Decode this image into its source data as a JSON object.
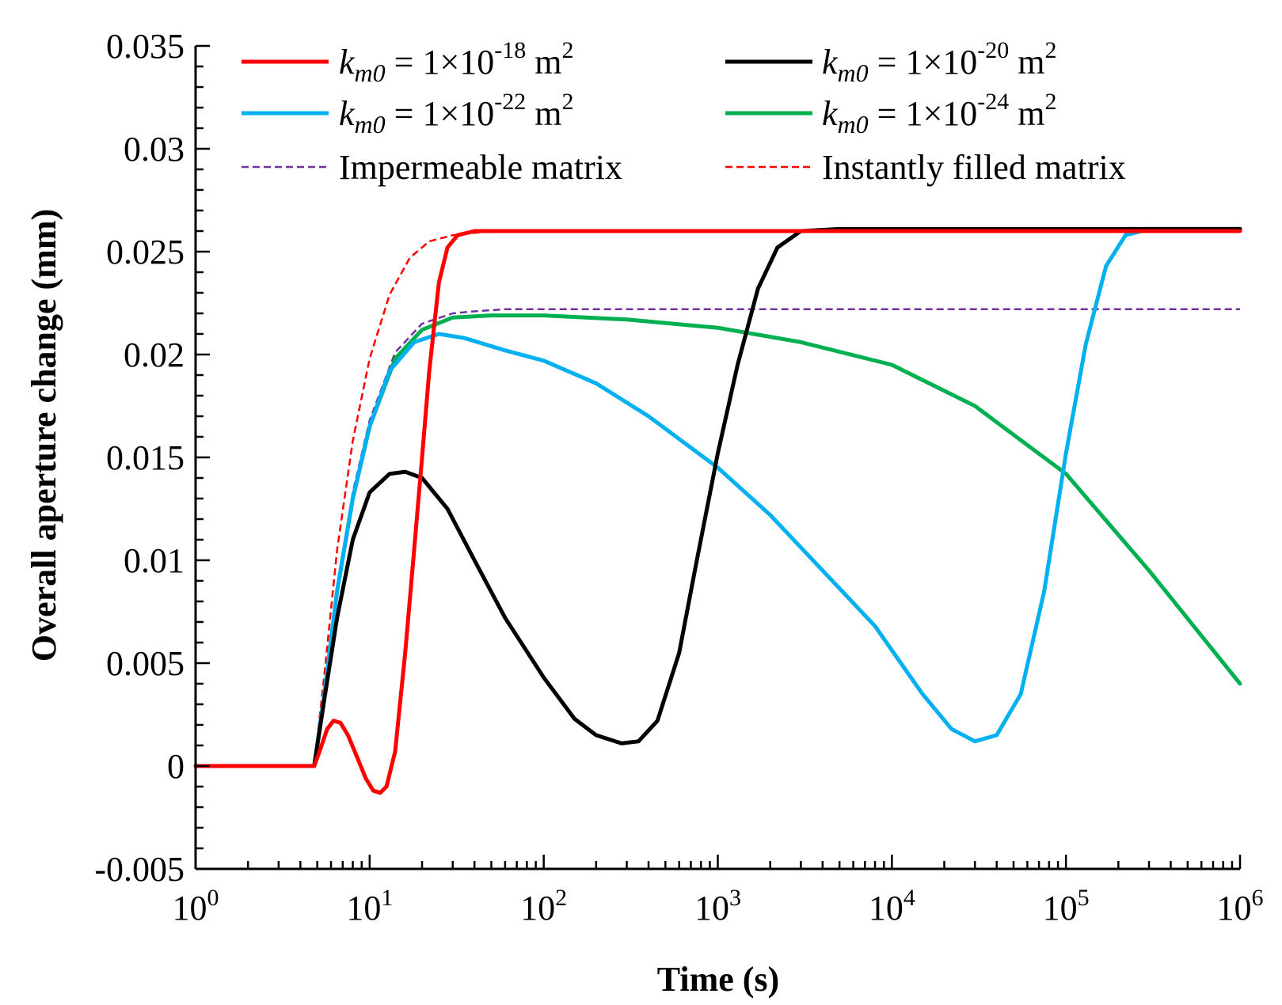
{
  "chart_data": {
    "type": "line",
    "title": "",
    "xlabel": "Time (s)",
    "ylabel": "Overall aperture change (mm)",
    "xscale": "log",
    "xlim": [
      1,
      1000000
    ],
    "ylim": [
      -0.005,
      0.035
    ],
    "grid": false,
    "legend_position": "top",
    "x_ticks": [
      {
        "base": "10",
        "exp": "0"
      },
      {
        "base": "10",
        "exp": "1"
      },
      {
        "base": "10",
        "exp": "2"
      },
      {
        "base": "10",
        "exp": "3"
      },
      {
        "base": "10",
        "exp": "4"
      },
      {
        "base": "10",
        "exp": "5"
      },
      {
        "base": "10",
        "exp": "6"
      }
    ],
    "y_ticks": [
      "-0.005",
      "0",
      "0.005",
      "0.01",
      "0.015",
      "0.02",
      "0.025",
      "0.03",
      "0.035"
    ],
    "series": [
      {
        "name": "k_m0 = 1×10^-18 m^2",
        "label_parts": {
          "k": "k",
          "sub": "m0",
          "eq": " = 1×10",
          "exp": "-18",
          "unit": " m",
          "unit_exp": "2"
        },
        "color": "#ff0000",
        "style": "solid",
        "width": 5,
        "points": [
          [
            1,
            0
          ],
          [
            4.8,
            0
          ],
          [
            5.2,
            0.0008
          ],
          [
            5.7,
            0.0018
          ],
          [
            6.2,
            0.0022
          ],
          [
            6.8,
            0.0021
          ],
          [
            7.5,
            0.0015
          ],
          [
            8.5,
            0.0004
          ],
          [
            9.5,
            -0.0006
          ],
          [
            10.5,
            -0.0012
          ],
          [
            11.5,
            -0.0013
          ],
          [
            12.5,
            -0.001
          ],
          [
            14,
            0.0007
          ],
          [
            16,
            0.0055
          ],
          [
            18,
            0.0105
          ],
          [
            20,
            0.015
          ],
          [
            22,
            0.0192
          ],
          [
            25,
            0.0235
          ],
          [
            28,
            0.0252
          ],
          [
            32,
            0.0258
          ],
          [
            40,
            0.026
          ],
          [
            100,
            0.026
          ],
          [
            1000000,
            0.026
          ]
        ]
      },
      {
        "name": "k_m0 = 1×10^-20 m^2",
        "label_parts": {
          "k": "k",
          "sub": "m0",
          "eq": " = 1×10",
          "exp": "-20",
          "unit": " m",
          "unit_exp": "2"
        },
        "color": "#000000",
        "style": "solid",
        "width": 5,
        "points": [
          [
            1,
            0
          ],
          [
            4.8,
            0
          ],
          [
            5.5,
            0.0033
          ],
          [
            6.5,
            0.0072
          ],
          [
            8,
            0.011
          ],
          [
            10,
            0.0133
          ],
          [
            13,
            0.0142
          ],
          [
            16,
            0.0143
          ],
          [
            20,
            0.014
          ],
          [
            28,
            0.0125
          ],
          [
            40,
            0.01
          ],
          [
            60,
            0.0072
          ],
          [
            100,
            0.0043
          ],
          [
            150,
            0.0023
          ],
          [
            200,
            0.0015
          ],
          [
            280,
            0.0011
          ],
          [
            350,
            0.0012
          ],
          [
            450,
            0.0022
          ],
          [
            600,
            0.0055
          ],
          [
            750,
            0.0098
          ],
          [
            1000,
            0.0152
          ],
          [
            1300,
            0.0195
          ],
          [
            1700,
            0.0232
          ],
          [
            2200,
            0.0252
          ],
          [
            3000,
            0.026
          ],
          [
            5000,
            0.0261
          ],
          [
            1000000,
            0.0261
          ]
        ]
      },
      {
        "name": "k_m0 = 1×10^-22 m^2",
        "label_parts": {
          "k": "k",
          "sub": "m0",
          "eq": " = 1×10",
          "exp": "-22",
          "unit": " m",
          "unit_exp": "2"
        },
        "color": "#00b0f0",
        "style": "solid",
        "width": 5,
        "points": [
          [
            1,
            0
          ],
          [
            4.8,
            0
          ],
          [
            5.5,
            0.0035
          ],
          [
            6.5,
            0.0085
          ],
          [
            8,
            0.013
          ],
          [
            10,
            0.0165
          ],
          [
            13,
            0.0192
          ],
          [
            18,
            0.0206
          ],
          [
            25,
            0.021
          ],
          [
            35,
            0.0208
          ],
          [
            60,
            0.0202
          ],
          [
            100,
            0.0197
          ],
          [
            200,
            0.0186
          ],
          [
            400,
            0.017
          ],
          [
            1000,
            0.0145
          ],
          [
            2000,
            0.0122
          ],
          [
            4000,
            0.0095
          ],
          [
            8000,
            0.0068
          ],
          [
            15000,
            0.0035
          ],
          [
            22000,
            0.0018
          ],
          [
            30000,
            0.0012
          ],
          [
            40000,
            0.0015
          ],
          [
            55000,
            0.0035
          ],
          [
            75000,
            0.0085
          ],
          [
            100000,
            0.0152
          ],
          [
            130000,
            0.0205
          ],
          [
            170000,
            0.0243
          ],
          [
            220000,
            0.0258
          ],
          [
            300000,
            0.0261
          ],
          [
            1000000,
            0.0261
          ]
        ]
      },
      {
        "name": "k_m0 = 1×10^-24 m^2",
        "label_parts": {
          "k": "k",
          "sub": "m0",
          "eq": " = 1×10",
          "exp": "-24",
          "unit": " m",
          "unit_exp": "2"
        },
        "color": "#00b050",
        "style": "solid",
        "width": 5,
        "points": [
          [
            1,
            0
          ],
          [
            4.8,
            0
          ],
          [
            5.5,
            0.0035
          ],
          [
            6.5,
            0.0085
          ],
          [
            8,
            0.013
          ],
          [
            10,
            0.0165
          ],
          [
            14,
            0.0198
          ],
          [
            20,
            0.0212
          ],
          [
            30,
            0.0218
          ],
          [
            50,
            0.0219
          ],
          [
            100,
            0.0219
          ],
          [
            300,
            0.0217
          ],
          [
            1000,
            0.0213
          ],
          [
            3000,
            0.0206
          ],
          [
            10000,
            0.0195
          ],
          [
            30000,
            0.0175
          ],
          [
            100000,
            0.0142
          ],
          [
            300000,
            0.0095
          ],
          [
            1000000,
            0.004
          ]
        ]
      },
      {
        "name": "Impermeable matrix",
        "color": "#7030a0",
        "style": "dashed",
        "width": 2.5,
        "points": [
          [
            1,
            0
          ],
          [
            4.8,
            0
          ],
          [
            5.5,
            0.0035
          ],
          [
            6.5,
            0.0087
          ],
          [
            8,
            0.0133
          ],
          [
            10,
            0.0168
          ],
          [
            14,
            0.0201
          ],
          [
            20,
            0.0215
          ],
          [
            30,
            0.022
          ],
          [
            40,
            0.0221
          ],
          [
            60,
            0.0222
          ],
          [
            1000000,
            0.0222
          ]
        ]
      },
      {
        "name": "Instantly filled matrix",
        "color": "#ff0000",
        "style": "dashed",
        "width": 2.5,
        "points": [
          [
            1,
            0
          ],
          [
            4.8,
            0
          ],
          [
            5.5,
            0.0045
          ],
          [
            6.5,
            0.0105
          ],
          [
            8,
            0.0158
          ],
          [
            10,
            0.0198
          ],
          [
            13,
            0.0229
          ],
          [
            17,
            0.0247
          ],
          [
            22,
            0.0255
          ],
          [
            30,
            0.0258
          ],
          [
            50,
            0.026
          ],
          [
            70,
            0.026
          ]
        ]
      }
    ]
  }
}
